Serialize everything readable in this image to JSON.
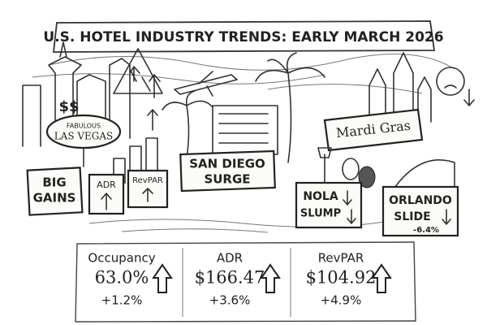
{
  "header": {
    "title": "U.S. HOTEL INDUSTRY TRENDS: EARLY MARCH 2026"
  },
  "scene": {
    "las_vegas_sign": [
      "FABULOUS",
      "LAS VEGAS"
    ],
    "big_gains": [
      "BIG",
      "GAINS"
    ],
    "adr_sign": "ADR",
    "revpar_sign": "RevPAR",
    "san_diego": [
      "SAN DIEGO",
      "SURGE"
    ],
    "mardi_gras": "Mardi Gras",
    "nola": [
      "NOLA",
      "SLUMP"
    ],
    "orlando": [
      "ORLANDO",
      "SLIDE",
      "-6.4%"
    ]
  },
  "metrics": [
    {
      "label": "Occupancy",
      "value": "63.0%",
      "change": "+1.2%"
    },
    {
      "label": "ADR",
      "value": "$166.47",
      "change": "+3.6%"
    },
    {
      "label": "RevPAR",
      "value": "$104.92",
      "change": "+4.9%"
    }
  ]
}
